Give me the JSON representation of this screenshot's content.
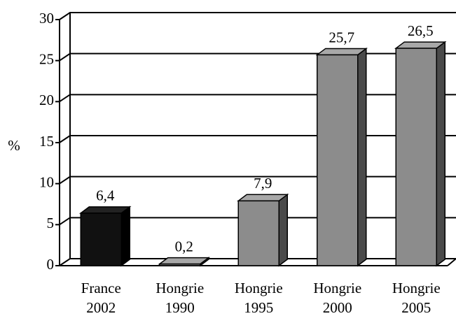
{
  "chart_data": {
    "type": "bar3d",
    "categories": [
      "France 2002",
      "Hongrie 1990",
      "Hongrie 1995",
      "Hongrie 2000",
      "Hongrie 2005"
    ],
    "values": [
      6.4,
      0.2,
      7.9,
      25.7,
      26.5
    ],
    "value_labels": [
      "6,4",
      "0,2",
      "7,9",
      "25,7",
      "26,5"
    ],
    "colors": [
      "#111111",
      "#8c8c8c",
      "#8c8c8c",
      "#8c8c8c",
      "#8c8c8c"
    ],
    "ylabel": "%",
    "ylim": [
      0,
      30
    ],
    "yticks": [
      0,
      5,
      10,
      15,
      20,
      25,
      30
    ],
    "grid": true
  }
}
